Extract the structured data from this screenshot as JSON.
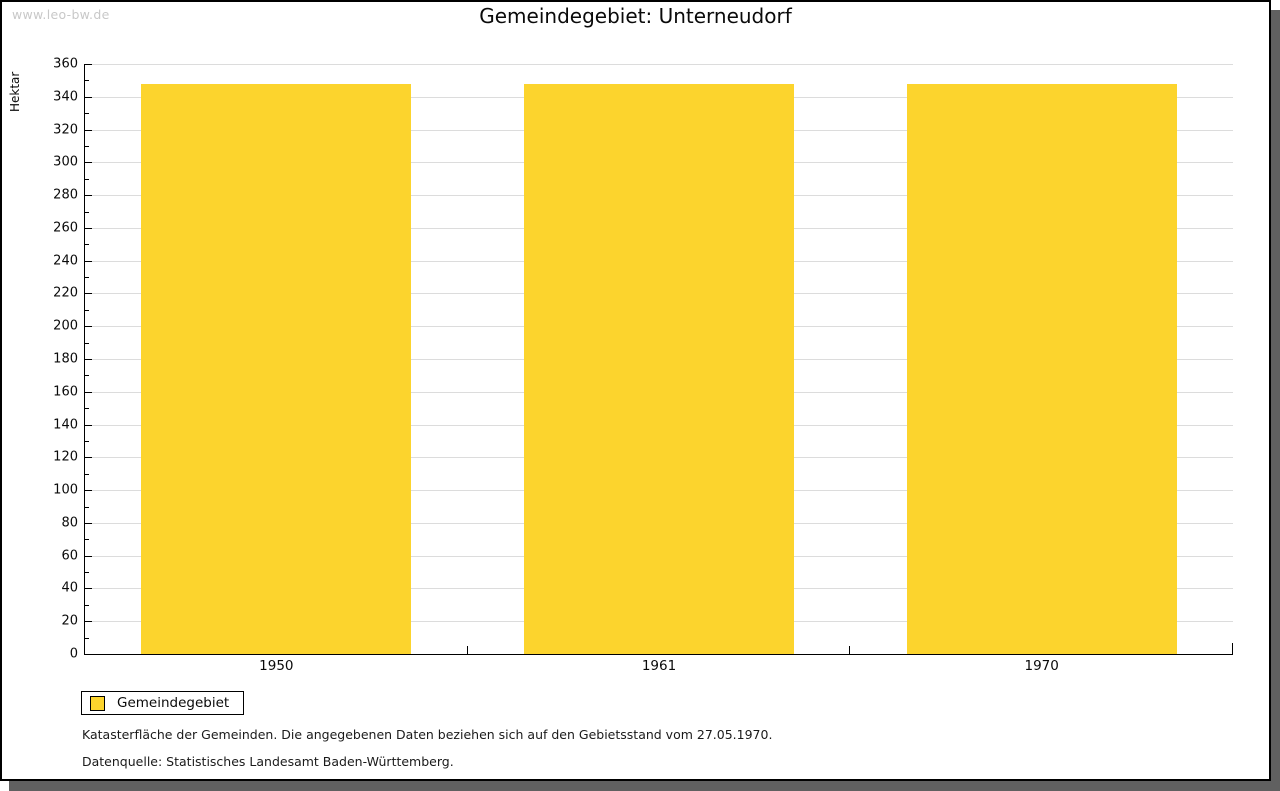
{
  "window": {
    "watermark": "www.leo-bw.de"
  },
  "chart_data": {
    "type": "bar",
    "title": "Gemeindegebiet: Unterneudorf",
    "ylabel": "Hektar",
    "xlabel": "",
    "categories": [
      "1950",
      "1961",
      "1970"
    ],
    "series": [
      {
        "name": "Gemeindegebiet",
        "values": [
          348,
          348,
          348
        ],
        "color": "#FCD42D"
      }
    ],
    "ylim": [
      0,
      360
    ],
    "ytick_step": 20,
    "yminor_step": 10,
    "grid": true,
    "legend_position": "bottom-left"
  },
  "legend": {
    "items": [
      {
        "label": "Gemeindegebiet",
        "color": "#FCD42D"
      }
    ]
  },
  "footnotes": {
    "line1": "Katasterfläche der Gemeinden. Die angegebenen Daten beziehen sich auf den Gebietsstand vom 27.05.1970.",
    "line2": "Datenquelle: Statistisches Landesamt Baden-Württemberg."
  },
  "colors": {
    "bar": "#FCD42D",
    "grid": "#DCDCDC",
    "axis": "#000000",
    "watermark": "#C8C8C8",
    "frame_shadow": "#606060"
  }
}
